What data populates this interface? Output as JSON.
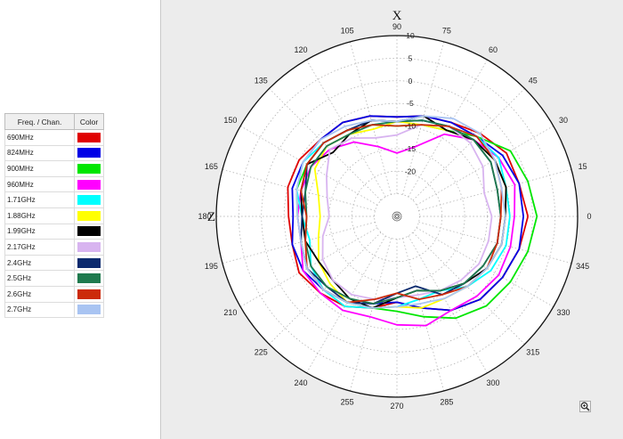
{
  "legend": {
    "header_freq": "Freq. / Chan.",
    "header_color": "Color",
    "rows": [
      {
        "label": "690MHz",
        "color": "#e00000"
      },
      {
        "label": "824MHz",
        "color": "#0000e6"
      },
      {
        "label": "900MHz",
        "color": "#00e600"
      },
      {
        "label": "960MHz",
        "color": "#ff00ff"
      },
      {
        "label": "1.71GHz",
        "color": "#00ffff"
      },
      {
        "label": "1.88GHz",
        "color": "#ffff00"
      },
      {
        "label": "1.99GHz",
        "color": "#000000"
      },
      {
        "label": "2.17GHz",
        "color": "#d8b4f0"
      },
      {
        "label": "2.4GHz",
        "color": "#0b2a6e"
      },
      {
        "label": "2.5GHz",
        "color": "#1f7a4e"
      },
      {
        "label": "2.6GHz",
        "color": "#cc2a0a"
      },
      {
        "label": "2.7GHz",
        "color": "#a9c4f2"
      }
    ]
  },
  "icons": {
    "zoom": "zoom-icon"
  },
  "chart_data": {
    "type": "polar-line",
    "angle_unit": "degrees",
    "angle_ticks": [
      0,
      15,
      30,
      45,
      60,
      75,
      90,
      105,
      120,
      135,
      150,
      165,
      180,
      195,
      210,
      225,
      240,
      255,
      270,
      285,
      300,
      315,
      330,
      345
    ],
    "radial_ticks": [
      10,
      5,
      0,
      -5,
      -10,
      -15,
      -20
    ],
    "radial_range": [
      -30,
      10
    ],
    "axis_labels": {
      "top": "X",
      "left": "Z"
    },
    "grid": true,
    "series": [
      {
        "name": "690MHz",
        "color": "#e00000",
        "points": [
          [
            0,
            -1
          ],
          [
            15,
            -2
          ],
          [
            30,
            -2
          ],
          [
            45,
            -4
          ],
          [
            60,
            -6
          ],
          [
            75,
            -7
          ],
          [
            90,
            -8
          ],
          [
            105,
            -7
          ],
          [
            120,
            -6
          ],
          [
            135,
            -6
          ],
          [
            150,
            -5
          ],
          [
            165,
            -5
          ],
          [
            180,
            -6
          ],
          [
            195,
            -6
          ],
          [
            210,
            -5
          ],
          [
            225,
            -6
          ],
          [
            240,
            -7
          ],
          [
            255,
            -9
          ],
          [
            270,
            -11
          ],
          [
            285,
            -9
          ],
          [
            300,
            -6
          ],
          [
            315,
            -4
          ],
          [
            330,
            -3
          ],
          [
            345,
            -2
          ]
        ]
      },
      {
        "name": "824MHz",
        "color": "#0000e6",
        "points": [
          [
            0,
            -2
          ],
          [
            15,
            -2
          ],
          [
            30,
            -3
          ],
          [
            45,
            -5
          ],
          [
            60,
            -6
          ],
          [
            75,
            -7
          ],
          [
            90,
            -8
          ],
          [
            105,
            -7
          ],
          [
            120,
            -6
          ],
          [
            135,
            -6
          ],
          [
            150,
            -6
          ],
          [
            165,
            -6
          ],
          [
            180,
            -7
          ],
          [
            195,
            -6
          ],
          [
            210,
            -6
          ],
          [
            225,
            -7
          ],
          [
            240,
            -8
          ],
          [
            255,
            -10
          ],
          [
            270,
            -11
          ],
          [
            285,
            -9
          ],
          [
            300,
            -6
          ],
          [
            315,
            -4
          ],
          [
            330,
            -3
          ],
          [
            345,
            -2
          ]
        ]
      },
      {
        "name": "900MHz",
        "color": "#00e600",
        "points": [
          [
            0,
            1
          ],
          [
            15,
            0
          ],
          [
            30,
            -1
          ],
          [
            45,
            -5
          ],
          [
            60,
            -8
          ],
          [
            75,
            -9
          ],
          [
            90,
            -10
          ],
          [
            105,
            -9
          ],
          [
            120,
            -8
          ],
          [
            135,
            -7
          ],
          [
            150,
            -7
          ],
          [
            165,
            -7
          ],
          [
            180,
            -8
          ],
          [
            195,
            -8
          ],
          [
            210,
            -7
          ],
          [
            225,
            -7
          ],
          [
            240,
            -8
          ],
          [
            255,
            -9
          ],
          [
            270,
            -9
          ],
          [
            285,
            -7
          ],
          [
            300,
            -4
          ],
          [
            315,
            -2
          ],
          [
            330,
            -1
          ],
          [
            345,
            0
          ]
        ]
      },
      {
        "name": "960MHz",
        "color": "#ff00ff",
        "points": [
          [
            0,
            -4
          ],
          [
            15,
            -3
          ],
          [
            30,
            -4
          ],
          [
            45,
            -6
          ],
          [
            60,
            -9
          ],
          [
            75,
            -14
          ],
          [
            90,
            -16
          ],
          [
            105,
            -14
          ],
          [
            120,
            -11
          ],
          [
            135,
            -9
          ],
          [
            150,
            -8
          ],
          [
            165,
            -8
          ],
          [
            180,
            -8
          ],
          [
            195,
            -8
          ],
          [
            210,
            -6
          ],
          [
            225,
            -6
          ],
          [
            240,
            -6
          ],
          [
            255,
            -7
          ],
          [
            270,
            -6
          ],
          [
            285,
            -5
          ],
          [
            300,
            -6
          ],
          [
            315,
            -5
          ],
          [
            330,
            -4
          ],
          [
            345,
            -4
          ]
        ]
      },
      {
        "name": "1.71GHz",
        "color": "#00ffff",
        "points": [
          [
            0,
            -5
          ],
          [
            15,
            -5
          ],
          [
            30,
            -4
          ],
          [
            45,
            -5
          ],
          [
            60,
            -7
          ],
          [
            75,
            -8
          ],
          [
            90,
            -9
          ],
          [
            105,
            -9
          ],
          [
            120,
            -8
          ],
          [
            135,
            -7
          ],
          [
            150,
            -6
          ],
          [
            165,
            -7
          ],
          [
            180,
            -9
          ],
          [
            195,
            -10
          ],
          [
            210,
            -8
          ],
          [
            225,
            -7
          ],
          [
            240,
            -7
          ],
          [
            255,
            -9
          ],
          [
            270,
            -10
          ],
          [
            285,
            -11
          ],
          [
            300,
            -11
          ],
          [
            315,
            -8
          ],
          [
            330,
            -6
          ],
          [
            345,
            -5
          ]
        ]
      },
      {
        "name": "1.88GHz",
        "color": "#ffff00",
        "points": [
          [
            0,
            -6
          ],
          [
            15,
            -5
          ],
          [
            30,
            -5
          ],
          [
            45,
            -6
          ],
          [
            60,
            -8
          ],
          [
            75,
            -9
          ],
          [
            90,
            -9
          ],
          [
            105,
            -10
          ],
          [
            120,
            -9
          ],
          [
            135,
            -8
          ],
          [
            150,
            -9
          ],
          [
            165,
            -12
          ],
          [
            180,
            -13
          ],
          [
            195,
            -12
          ],
          [
            210,
            -10
          ],
          [
            225,
            -9
          ],
          [
            240,
            -8
          ],
          [
            255,
            -9
          ],
          [
            270,
            -10
          ],
          [
            285,
            -9
          ],
          [
            300,
            -9
          ],
          [
            315,
            -8
          ],
          [
            330,
            -7
          ],
          [
            345,
            -6
          ]
        ]
      },
      {
        "name": "1.99GHz",
        "color": "#000000",
        "points": [
          [
            0,
            -6
          ],
          [
            15,
            -5
          ],
          [
            30,
            -5
          ],
          [
            45,
            -6
          ],
          [
            60,
            -8
          ],
          [
            75,
            -7
          ],
          [
            90,
            -9
          ],
          [
            105,
            -8
          ],
          [
            120,
            -9
          ],
          [
            135,
            -10
          ],
          [
            150,
            -7
          ],
          [
            165,
            -8
          ],
          [
            180,
            -9
          ],
          [
            195,
            -9
          ],
          [
            210,
            -10
          ],
          [
            225,
            -10
          ],
          [
            240,
            -9
          ],
          [
            255,
            -9
          ],
          [
            270,
            -12
          ],
          [
            285,
            -13
          ],
          [
            300,
            -11
          ],
          [
            315,
            -9
          ],
          [
            330,
            -7
          ],
          [
            345,
            -6
          ]
        ]
      },
      {
        "name": "2.17GHz",
        "color": "#d8b4f0",
        "points": [
          [
            0,
            -9
          ],
          [
            15,
            -10
          ],
          [
            30,
            -8
          ],
          [
            45,
            -7
          ],
          [
            60,
            -7
          ],
          [
            75,
            -9
          ],
          [
            90,
            -12
          ],
          [
            105,
            -12
          ],
          [
            120,
            -10
          ],
          [
            135,
            -9
          ],
          [
            150,
            -12
          ],
          [
            165,
            -14
          ],
          [
            180,
            -15
          ],
          [
            195,
            -13
          ],
          [
            210,
            -11
          ],
          [
            225,
            -10
          ],
          [
            240,
            -10
          ],
          [
            255,
            -11
          ],
          [
            270,
            -12
          ],
          [
            285,
            -12
          ],
          [
            300,
            -11
          ],
          [
            315,
            -10
          ],
          [
            330,
            -9
          ],
          [
            345,
            -9
          ]
        ]
      },
      {
        "name": "2.4GHz",
        "color": "#0b2a6e",
        "points": [
          [
            0,
            -7
          ],
          [
            15,
            -7
          ],
          [
            30,
            -6
          ],
          [
            45,
            -6
          ],
          [
            60,
            -7
          ],
          [
            75,
            -8
          ],
          [
            90,
            -9
          ],
          [
            105,
            -8
          ],
          [
            120,
            -8
          ],
          [
            135,
            -7
          ],
          [
            150,
            -7
          ],
          [
            165,
            -9
          ],
          [
            180,
            -9
          ],
          [
            195,
            -8
          ],
          [
            210,
            -7
          ],
          [
            225,
            -8
          ],
          [
            240,
            -8
          ],
          [
            255,
            -10
          ],
          [
            270,
            -13
          ],
          [
            285,
            -14
          ],
          [
            300,
            -10
          ],
          [
            315,
            -9
          ],
          [
            330,
            -8
          ],
          [
            345,
            -7
          ]
        ]
      },
      {
        "name": "2.5GHz",
        "color": "#1f7a4e",
        "points": [
          [
            0,
            -7
          ],
          [
            15,
            -7
          ],
          [
            30,
            -6
          ],
          [
            45,
            -6
          ],
          [
            60,
            -7
          ],
          [
            75,
            -8
          ],
          [
            90,
            -9
          ],
          [
            105,
            -9
          ],
          [
            120,
            -9
          ],
          [
            135,
            -8
          ],
          [
            150,
            -8
          ],
          [
            165,
            -9
          ],
          [
            180,
            -10
          ],
          [
            195,
            -9
          ],
          [
            210,
            -8
          ],
          [
            225,
            -8
          ],
          [
            240,
            -9
          ],
          [
            255,
            -10
          ],
          [
            270,
            -12
          ],
          [
            285,
            -13
          ],
          [
            300,
            -11
          ],
          [
            315,
            -9
          ],
          [
            330,
            -8
          ],
          [
            345,
            -7
          ]
        ]
      },
      {
        "name": "2.6GHz",
        "color": "#cc2a0a",
        "points": [
          [
            0,
            -7
          ],
          [
            15,
            -6
          ],
          [
            30,
            -5
          ],
          [
            45,
            -5
          ],
          [
            60,
            -7
          ],
          [
            75,
            -9
          ],
          [
            90,
            -10
          ],
          [
            105,
            -9
          ],
          [
            120,
            -8
          ],
          [
            135,
            -7
          ],
          [
            150,
            -7
          ],
          [
            165,
            -8
          ],
          [
            180,
            -10
          ],
          [
            195,
            -9
          ],
          [
            210,
            -7
          ],
          [
            225,
            -7
          ],
          [
            240,
            -8
          ],
          [
            255,
            -11
          ],
          [
            270,
            -13
          ],
          [
            285,
            -11
          ],
          [
            300,
            -10
          ],
          [
            315,
            -8
          ],
          [
            330,
            -7
          ],
          [
            345,
            -7
          ]
        ]
      },
      {
        "name": "2.7GHz",
        "color": "#a9c4f2",
        "points": [
          [
            0,
            -6
          ],
          [
            15,
            -6
          ],
          [
            30,
            -5
          ],
          [
            45,
            -4
          ],
          [
            60,
            -5
          ],
          [
            75,
            -7
          ],
          [
            90,
            -9
          ],
          [
            105,
            -8
          ],
          [
            120,
            -7
          ],
          [
            135,
            -6
          ],
          [
            150,
            -6
          ],
          [
            165,
            -7
          ],
          [
            180,
            -8
          ],
          [
            195,
            -8
          ],
          [
            210,
            -7
          ],
          [
            225,
            -7
          ],
          [
            240,
            -8
          ],
          [
            255,
            -9
          ],
          [
            270,
            -10
          ],
          [
            285,
            -10
          ],
          [
            300,
            -9
          ],
          [
            315,
            -8
          ],
          [
            330,
            -7
          ],
          [
            345,
            -6
          ]
        ]
      }
    ]
  }
}
